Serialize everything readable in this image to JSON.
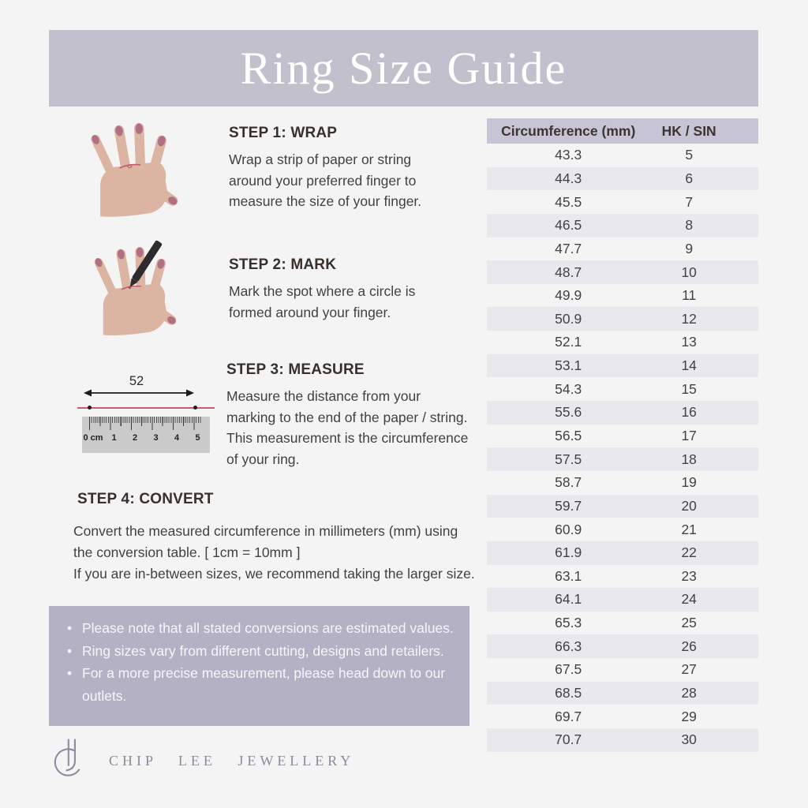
{
  "header": {
    "title": "Ring Size Guide"
  },
  "steps": {
    "step1": {
      "heading": "STEP 1: WRAP",
      "lines": [
        "Wrap a strip of paper or string",
        "around your preferred finger to",
        "measure the size of your finger."
      ]
    },
    "step2": {
      "heading": "STEP 2: MARK",
      "lines": [
        "Mark the spot where a circle is",
        "formed around your finger."
      ]
    },
    "step3": {
      "heading": "STEP 3: MEASURE",
      "lines": [
        "Measure the distance from your",
        "marking to the end of the paper / string.",
        "This measurement is the circumference",
        "of your ring."
      ]
    },
    "step4": {
      "heading": "STEP 4: CONVERT",
      "lines": [
        "Convert the measured circumference in millimeters (mm) using",
        "the conversion table. [ 1cm = 10mm ]",
        "If you are in-between sizes, we recommend taking the larger size."
      ]
    }
  },
  "ruler": {
    "measurement_label": "52",
    "tick_labels": [
      "0 cm",
      "1",
      "2",
      "3",
      "4",
      "5"
    ]
  },
  "notes": [
    "Please note that all stated conversions are estimated values.",
    "Ring sizes vary from different cutting, designs and retailers.",
    "For a more precise measurement, please head down to our outlets."
  ],
  "table": {
    "headers": [
      "Circumference (mm)",
      "HK / SIN"
    ],
    "rows": [
      [
        "43.3",
        "5"
      ],
      [
        "44.3",
        "6"
      ],
      [
        "45.5",
        "7"
      ],
      [
        "46.5",
        "8"
      ],
      [
        "47.7",
        "9"
      ],
      [
        "48.7",
        "10"
      ],
      [
        "49.9",
        "11"
      ],
      [
        "50.9",
        "12"
      ],
      [
        "52.1",
        "13"
      ],
      [
        "53.1",
        "14"
      ],
      [
        "54.3",
        "15"
      ],
      [
        "55.6",
        "16"
      ],
      [
        "56.5",
        "17"
      ],
      [
        "57.5",
        "18"
      ],
      [
        "58.7",
        "19"
      ],
      [
        "59.7",
        "20"
      ],
      [
        "60.9",
        "21"
      ],
      [
        "61.9",
        "22"
      ],
      [
        "63.1",
        "23"
      ],
      [
        "64.1",
        "24"
      ],
      [
        "65.3",
        "25"
      ],
      [
        "66.3",
        "26"
      ],
      [
        "67.5",
        "27"
      ],
      [
        "68.5",
        "28"
      ],
      [
        "69.7",
        "29"
      ],
      [
        "70.7",
        "30"
      ]
    ]
  },
  "footer": {
    "brand": "CHIP LEE JEWELLERY"
  },
  "colors": {
    "banner": "#c2c0cc",
    "table_header": "#c7c5d3",
    "row_stripe": "#e9e8ed",
    "notes_box": "#b3b1c3",
    "string_red": "#c65e72",
    "skin": "#dbb4a2",
    "nail": "#b17082",
    "brand_text": "#8b8a9c"
  }
}
